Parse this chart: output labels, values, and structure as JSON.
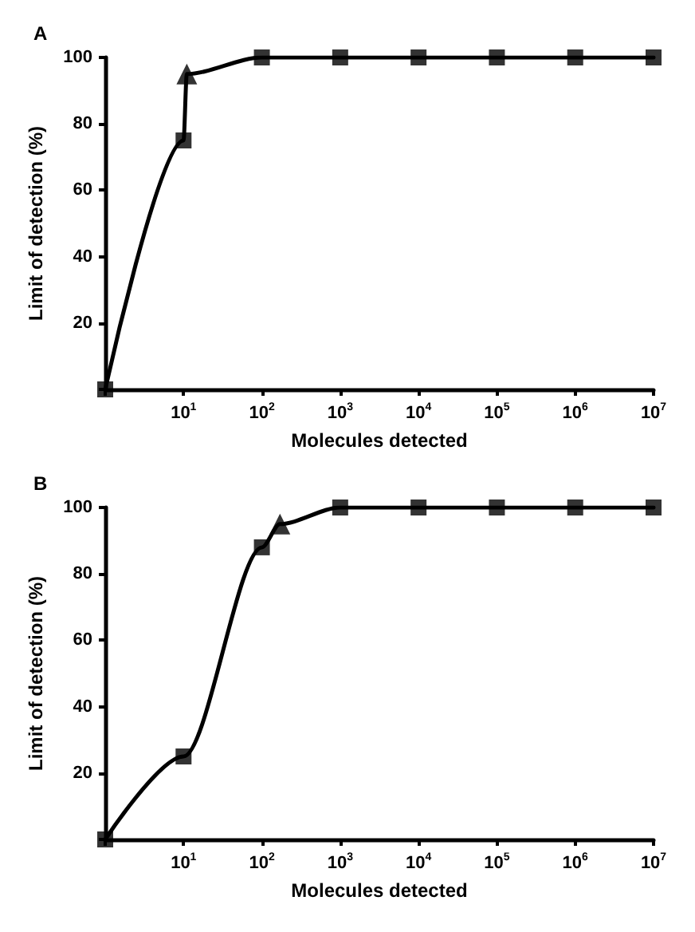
{
  "chart_data": [
    {
      "type": "line",
      "title": "A",
      "xlabel": "Molecules detected",
      "ylabel": "Limit of detection (%)",
      "log": "x",
      "xlim": [
        1,
        10000000
      ],
      "xticks": [
        {
          "value": 1,
          "label": null
        },
        {
          "value": 10,
          "label": "10$^{1}$"
        },
        {
          "value": 100,
          "label": "10$^{2}$"
        },
        {
          "value": 1000,
          "label": "10$^{3}$"
        },
        {
          "value": 10000,
          "label": "10$^{4}$"
        },
        {
          "value": 100000,
          "label": "10$^{5}$"
        },
        {
          "value": 1000000,
          "label": "10$^{6}$"
        },
        {
          "value": 10000000,
          "label": "10$^{7}$"
        }
      ],
      "ylim": [
        0,
        100
      ],
      "yticks": [
        {
          "value": 0,
          "label": null
        },
        20,
        40,
        60,
        80,
        100
      ],
      "grid": false,
      "series": [
        {
          "color": "#000000",
          "marker": "none",
          "line_style": "solid",
          "x": [
            1,
            10,
            11,
            100,
            1000,
            10000,
            100000,
            1000000,
            10000000
          ],
          "values": [
            0,
            75,
            95,
            100,
            100,
            100,
            100,
            100,
            100
          ]
        },
        {
          "type": "scatter",
          "color": "#000000",
          "marker": "square",
          "x": [
            1,
            10,
            100,
            1000,
            10000,
            100000,
            1000000,
            10000000
          ],
          "values": [
            0,
            75,
            100,
            100,
            100,
            100,
            100,
            100
          ]
        },
        {
          "type": "scatter",
          "color": "#000000",
          "marker": "triangle",
          "x": [
            11
          ],
          "values": [
            95
          ]
        }
      ]
    },
    {
      "type": "line",
      "title": "B",
      "xlabel": "Molecules detected",
      "ylabel": "Limit of detection (%)",
      "log": "x",
      "xlim": [
        1,
        10000000
      ],
      "xticks": [
        {
          "value": 1,
          "label": null
        },
        {
          "value": 10,
          "label": "10$^{1}$"
        },
        {
          "value": 100,
          "label": "10$^{2}$"
        },
        {
          "value": 1000,
          "label": "10$^{3}$"
        },
        {
          "value": 10000,
          "label": "10$^{4}$"
        },
        {
          "value": 100000,
          "label": "10$^{5}$"
        },
        {
          "value": 1000000,
          "label": "10$^{6}$"
        },
        {
          "value": 10000000,
          "label": "10$^{7}$"
        }
      ],
      "ylim": [
        0,
        100
      ],
      "yticks": [
        {
          "value": 0,
          "label": null
        },
        20,
        40,
        60,
        80,
        100
      ],
      "grid": false,
      "series": [
        {
          "color": "#000000",
          "marker": "none",
          "line_style": "solid",
          "x": [
            1,
            10,
            100,
            170,
            1000,
            10000,
            100000,
            1000000,
            10000000
          ],
          "values": [
            0,
            25,
            88,
            95,
            100,
            100,
            100,
            100,
            100
          ]
        },
        {
          "type": "scatter",
          "color": "#000000",
          "marker": "square",
          "x": [
            1,
            10,
            100,
            1000,
            10000,
            100000,
            1000000,
            10000000
          ],
          "values": [
            0,
            25,
            88,
            100,
            100,
            100,
            100,
            100
          ]
        },
        {
          "type": "scatter",
          "color": "#000000",
          "marker": "triangle",
          "x": [
            170
          ],
          "values": [
            95
          ]
        }
      ]
    }
  ]
}
